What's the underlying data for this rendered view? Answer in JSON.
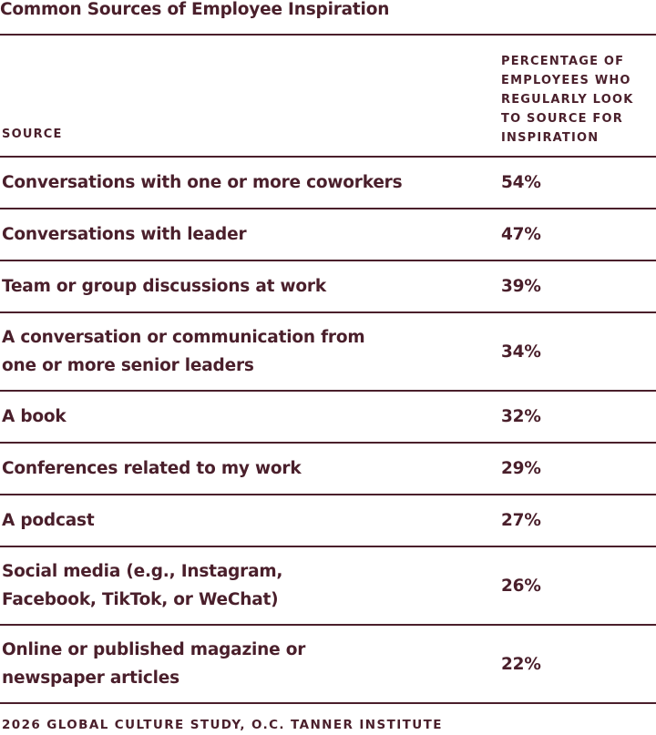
{
  "title": "Common Sources of Employee Inspiration",
  "chart_data": {
    "type": "table",
    "columns": [
      "SOURCE",
      "PERCENTAGE OF\nEMPLOYEES WHO\nREGULARLY LOOK\nTO SOURCE FOR\nINSPIRATION"
    ],
    "rows": [
      {
        "source": "Conversations with one or more coworkers",
        "percent": "54%",
        "value": 54
      },
      {
        "source": "Conversations with leader",
        "percent": "47%",
        "value": 47
      },
      {
        "source": "Team or group discussions at work",
        "percent": "39%",
        "value": 39
      },
      {
        "source": "A conversation or communication from one or more senior leaders",
        "percent": "34%",
        "value": 34
      },
      {
        "source": "A book",
        "percent": "32%",
        "value": 32
      },
      {
        "source": "Conferences related to my work",
        "percent": "29%",
        "value": 29
      },
      {
        "source": "A podcast",
        "percent": "27%",
        "value": 27
      },
      {
        "source": "Social media (e.g., Instagram, Facebook, TikTok, or WeChat)",
        "percent": "26%",
        "value": 26
      },
      {
        "source": "Online or published magazine or newspaper articles",
        "percent": "22%",
        "value": 22
      }
    ]
  },
  "footer": "2026 GLOBAL CULTURE STUDY, O.C. TANNER INSTITUTE",
  "colors": {
    "text": "#4a1f2b",
    "rule": "#4a1f2b",
    "background": "#ffffff"
  }
}
